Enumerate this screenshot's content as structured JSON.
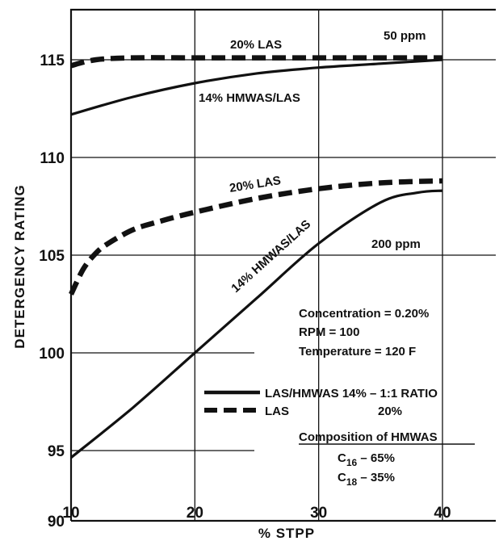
{
  "chart_data": {
    "type": "line",
    "title": "",
    "xlabel": "% STPP",
    "ylabel": "DETERGENCY RATING",
    "xlim": [
      10,
      40
    ],
    "ylim": [
      90,
      115
    ],
    "x_ticks": [
      "10",
      "20",
      "30",
      "40"
    ],
    "y_ticks": [
      "90",
      "95",
      "100",
      "105",
      "110",
      "115"
    ],
    "grid": true,
    "series": [
      {
        "name": "20% LAS",
        "group": "50 ppm",
        "style": "dashed",
        "x": [
          10,
          12,
          15,
          20,
          25,
          30,
          35,
          40
        ],
        "y": [
          114.7,
          115.0,
          115.1,
          115.1,
          115.1,
          115.1,
          115.1,
          115.1
        ]
      },
      {
        "name": "14% HMWAS/LAS",
        "group": "50 ppm",
        "style": "solid",
        "x": [
          10,
          15,
          20,
          25,
          30,
          35,
          40
        ],
        "y": [
          112.2,
          113.1,
          113.8,
          114.3,
          114.6,
          114.8,
          115.0
        ]
      },
      {
        "name": "20% LAS",
        "group": "200 ppm",
        "style": "dashed",
        "x": [
          10,
          11,
          12,
          13,
          15,
          17,
          20,
          25,
          30,
          35,
          40
        ],
        "y": [
          103.0,
          104.3,
          105.1,
          105.6,
          106.3,
          106.7,
          107.2,
          107.9,
          108.4,
          108.7,
          108.8
        ]
      },
      {
        "name": "14% HMWAS/LAS",
        "group": "200 ppm",
        "style": "solid",
        "x": [
          10,
          15,
          20,
          25,
          30,
          35,
          38,
          40
        ],
        "y": [
          94.5,
          97.2,
          100.0,
          102.8,
          105.6,
          107.7,
          108.2,
          108.3
        ]
      }
    ],
    "annotations": [
      "50 ppm",
      "200 ppm",
      "Concentration = 0.20%",
      "RPM = 100",
      "Temperature = 120  F"
    ],
    "legend": {
      "placement": "lower-right",
      "entries": [
        {
          "style": "solid",
          "label": "LAS/HMWAS 14% – 1:1 RATIO"
        },
        {
          "style": "dashed",
          "label": "LAS",
          "value": "20%"
        }
      ]
    },
    "composition": {
      "heading": "Composition of HMWAS",
      "rows": [
        {
          "base": "C",
          "sub": "16",
          "rest": " – 65%"
        },
        {
          "base": "C",
          "sub": "18",
          "rest": " – 35%"
        }
      ]
    }
  }
}
